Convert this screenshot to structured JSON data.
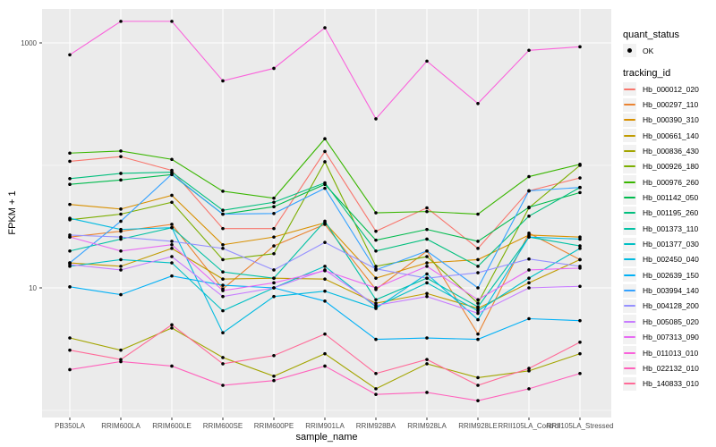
{
  "chart_data": {
    "type": "line",
    "title": "",
    "xlabel": "sample_name",
    "ylabel": "FPKM + 1",
    "y_scale": "log10",
    "ylim": [
      0.88,
      1900
    ],
    "y_tick_labels": [
      "1000",
      "10"
    ],
    "y_tick_values": [
      1000,
      10
    ],
    "y_grid_major": [
      1000,
      10
    ],
    "y_grid_minor": [
      100,
      1
    ],
    "grid": true,
    "legend_position": "right",
    "panel_bg": "#EBEBEB",
    "grid_color": "#FFFFFF",
    "key_bg": "#F2F2F2",
    "axis_text_color": "#4D4D4D",
    "point_color": "#000000",
    "categories": [
      "PB350LA",
      "RRIM600LA",
      "RRIM600LE",
      "RRIM600SE",
      "RRIM600PE",
      "RRIM901LA",
      "RRIM928BA",
      "RRIM928LA",
      "RRIM928LE",
      "RRII105LA_Control",
      "RRII105LA_Stressed"
    ],
    "series": [
      {
        "name": "Hb_000012_020",
        "color": "#F8766D",
        "values": [
          108,
          118,
          91,
          30.5,
          30.5,
          130,
          29,
          45,
          21,
          62,
          79
        ]
      },
      {
        "name": "Hb_000297_110",
        "color": "#EA8331",
        "values": [
          26,
          29,
          33,
          9.8,
          22,
          33,
          9.7,
          20,
          4.2,
          28,
          17
        ]
      },
      {
        "name": "Hb_000390_310",
        "color": "#D89000",
        "values": [
          48,
          44,
          57,
          22.5,
          26,
          34,
          12,
          16,
          17,
          27,
          26
        ]
      },
      {
        "name": "Hb_000661_140",
        "color": "#C09B00",
        "values": [
          16,
          15,
          21,
          11.8,
          12,
          11.8,
          7.5,
          9,
          6.8,
          11,
          17
        ]
      },
      {
        "name": "Hb_000836_430",
        "color": "#A3A500",
        "values": [
          3.9,
          3.1,
          4.7,
          2.7,
          1.9,
          2.9,
          1.5,
          2.4,
          1.85,
          2.1,
          2.9
        ]
      },
      {
        "name": "Hb_000926_180",
        "color": "#7CAE00",
        "values": [
          36,
          40,
          50,
          17,
          19,
          107,
          15,
          18,
          7.5,
          45,
          100
        ]
      },
      {
        "name": "Hb_000976_260",
        "color": "#39B600",
        "values": [
          126,
          131,
          112,
          61.5,
          54,
          165,
          41,
          42,
          40,
          81,
          102
        ]
      },
      {
        "name": "Hb_001142_050",
        "color": "#00BB4E",
        "values": [
          70,
          76,
          84,
          40,
          46,
          70,
          24.5,
          30,
          24,
          45.5,
          60
        ]
      },
      {
        "name": "Hb_001195_260",
        "color": "#00BF7D",
        "values": [
          78,
          86,
          88,
          43,
          50,
          72,
          20,
          25,
          15,
          38.5,
          66
        ]
      },
      {
        "name": "Hb_001373_110",
        "color": "#00C1A3",
        "values": [
          20,
          25,
          31,
          13.5,
          12,
          35,
          8,
          12,
          7,
          26,
          22
        ]
      },
      {
        "name": "Hb_001377_030",
        "color": "#00BFC4",
        "values": [
          15,
          17,
          16,
          6.5,
          10,
          15,
          7,
          11,
          6.5,
          12,
          21
        ]
      },
      {
        "name": "Hb_002450_040",
        "color": "#00BAE0",
        "values": [
          37,
          30,
          31,
          4.3,
          8.5,
          9.4,
          6.8,
          13,
          5.5,
          26,
          25
        ]
      },
      {
        "name": "Hb_002639_150",
        "color": "#00B0F6",
        "values": [
          10.2,
          8.8,
          12.5,
          10.5,
          10,
          7.8,
          3.8,
          3.9,
          3.8,
          5.6,
          5.4
        ]
      },
      {
        "name": "Hb_003994_140",
        "color": "#35A2FF",
        "values": [
          16,
          35,
          85,
          40,
          40.5,
          65,
          14,
          20,
          10,
          62,
          66
        ]
      },
      {
        "name": "Hb_004128_200",
        "color": "#9590FF",
        "values": [
          27,
          26,
          24,
          21,
          14,
          23.5,
          14.3,
          12,
          13.3,
          17.2,
          15
        ]
      },
      {
        "name": "Hb_005085_020",
        "color": "#C77CFF",
        "values": [
          15.5,
          14,
          18,
          8.5,
          10,
          14,
          7.2,
          8.5,
          6.2,
          10,
          10.3
        ]
      },
      {
        "name": "Hb_007313_090",
        "color": "#E76BF3",
        "values": [
          26,
          20,
          22.5,
          9.5,
          11,
          13.8,
          10,
          15,
          8,
          14,
          14.5
        ]
      },
      {
        "name": "Hb_011013_010",
        "color": "#FA62DB",
        "values": [
          800,
          1500,
          1500,
          490,
          620,
          1330,
          240,
          710,
          320,
          870,
          930
        ]
      },
      {
        "name": "Hb_022132_010",
        "color": "#FF62BC",
        "values": [
          2.15,
          2.5,
          2.3,
          1.6,
          1.75,
          2.3,
          1.35,
          1.4,
          1.2,
          1.5,
          2.0
        ]
      },
      {
        "name": "Hb_140833_010",
        "color": "#FF6A98",
        "values": [
          3.1,
          2.6,
          5.0,
          2.4,
          2.8,
          4.2,
          2.0,
          2.6,
          1.6,
          2.2,
          3.6
        ]
      }
    ]
  },
  "legend": {
    "quant_status": {
      "title": "quant_status",
      "ok_label": "OK"
    },
    "tracking_id": {
      "title": "tracking_id"
    }
  }
}
